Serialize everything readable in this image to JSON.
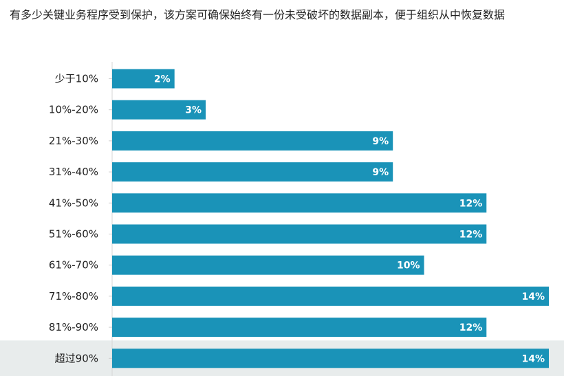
{
  "chart_data": {
    "type": "bar",
    "orientation": "horizontal",
    "title": "有多少关键业务程序受到保护，该方案可确保始终有一份未受破坏的数据副本，便于组织从中恢复数据",
    "categories": [
      "少于10%",
      "10%-20%",
      "21%-30%",
      "31%-40%",
      "41%-50%",
      "51%-60%",
      "61%-70%",
      "71%-80%",
      "81%-90%",
      "超过90%"
    ],
    "values": [
      2,
      3,
      9,
      9,
      12,
      12,
      10,
      14,
      12,
      14
    ],
    "value_labels": [
      "2%",
      "3%",
      "9%",
      "9%",
      "12%",
      "12%",
      "10%",
      "14%",
      "12%",
      "14%"
    ],
    "bar_color": "#1a93b8",
    "highlight_row_color": "#e8ecec",
    "highlighted_category": "超过90%",
    "xlim": [
      0,
      14
    ],
    "grid": false,
    "legend": "none"
  }
}
